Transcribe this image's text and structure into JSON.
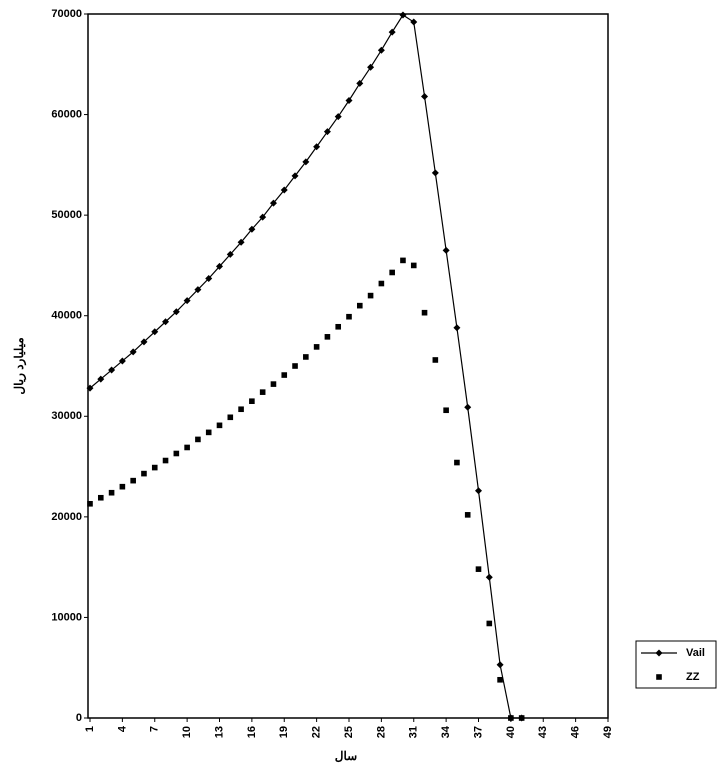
{
  "chart_data": {
    "type": "line",
    "y_label": "میلیارد ریال",
    "x_label": "سال",
    "x": [
      1,
      2,
      3,
      4,
      5,
      6,
      7,
      8,
      9,
      10,
      11,
      12,
      13,
      14,
      15,
      16,
      17,
      18,
      19,
      20,
      21,
      22,
      23,
      24,
      25,
      26,
      27,
      28,
      29,
      30,
      31,
      32,
      33,
      34,
      35,
      36,
      37,
      38,
      39,
      40,
      41
    ],
    "xlim": [
      1,
      49
    ],
    "xticks": [
      1,
      4,
      7,
      10,
      13,
      16,
      19,
      22,
      25,
      28,
      31,
      34,
      37,
      40,
      43,
      46,
      49
    ],
    "ylim": [
      0,
      70000
    ],
    "yticks": [
      0,
      10000,
      20000,
      30000,
      40000,
      50000,
      60000,
      70000
    ],
    "legend": "bottom-right-outside",
    "series": [
      {
        "name": "Vail",
        "color": "#000000",
        "marker": "diamond",
        "line": true,
        "values": [
          32800,
          33700,
          34600,
          35500,
          36400,
          37400,
          38400,
          39400,
          40400,
          41500,
          42600,
          43700,
          44900,
          46100,
          47300,
          48600,
          49800,
          51200,
          52500,
          53900,
          55300,
          56800,
          58300,
          59800,
          61400,
          63100,
          64700,
          66400,
          68200,
          69900,
          69200,
          61800,
          54200,
          46500,
          38800,
          30900,
          22600,
          14000,
          5300,
          0,
          0
        ]
      },
      {
        "name": "ZZ",
        "color": "#000000",
        "marker": "square",
        "line": false,
        "values": [
          21300,
          21900,
          22400,
          23000,
          23600,
          24300,
          24900,
          25600,
          26300,
          26900,
          27700,
          28400,
          29100,
          29900,
          30700,
          31500,
          32400,
          33200,
          34100,
          35000,
          35900,
          36900,
          37900,
          38900,
          39900,
          41000,
          42000,
          43200,
          44300,
          45500,
          45000,
          40300,
          35600,
          30600,
          25400,
          20200,
          14800,
          9400,
          3800,
          0,
          0
        ]
      }
    ]
  }
}
